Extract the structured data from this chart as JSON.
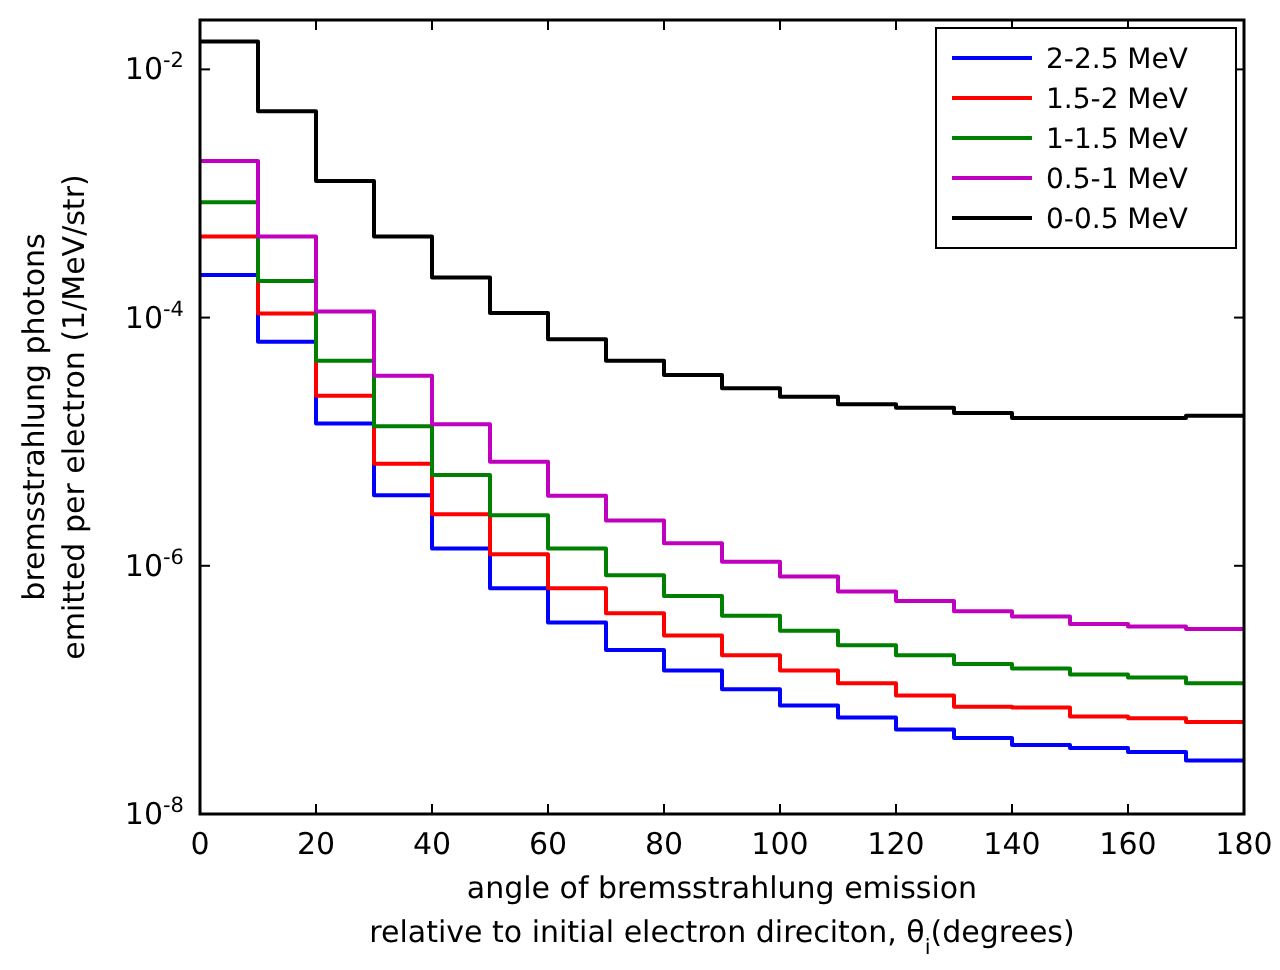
{
  "chart_data": {
    "type": "step",
    "xlabel": "angle of bremsstrahlung emission\nrelative to initial electron direciton, θ$_{i}$(degrees)",
    "ylabel": "bremsstrahlung photons\nemitted per electron (1/MeV/str)",
    "log": "y",
    "legend": "top right",
    "grid": false,
    "x": [
      0,
      10,
      20,
      30,
      40,
      50,
      60,
      70,
      80,
      90,
      100,
      110,
      120,
      130,
      140,
      150,
      160,
      170,
      180
    ],
    "xlim": [
      0,
      180
    ],
    "xticks": [
      0,
      20,
      40,
      60,
      80,
      100,
      120,
      140,
      160,
      180
    ],
    "ylim": [
      1e-08,
      0.025
    ],
    "yticks": [
      {
        "value": 1e-08,
        "label": "10$^{-8}$"
      },
      {
        "value": 1e-06,
        "label": "10$^{-6}$"
      },
      {
        "value": 0.0001,
        "label": "10$^{-4}$"
      },
      {
        "value": 0.01,
        "label": "10$^{-2}$"
      }
    ],
    "series": [
      {
        "name": "2-2.5 MeV",
        "color": "#0000ff",
        "values": [
          0.00022,
          6.4e-05,
          1.4e-05,
          3.7e-06,
          1.38e-06,
          6.6e-07,
          3.5e-07,
          2.1e-07,
          1.43e-07,
          1.01e-07,
          7.5e-08,
          6e-08,
          4.8e-08,
          4.1e-08,
          3.6e-08,
          3.4e-08,
          3.16e-08,
          2.7e-08,
          2.7e-08
        ]
      },
      {
        "name": "1.5-2 MeV",
        "color": "#ff0000",
        "values": [
          0.00045,
          0.000108,
          2.35e-05,
          6.65e-06,
          2.6e-06,
          1.24e-06,
          6.6e-07,
          4.15e-07,
          2.75e-07,
          1.9e-07,
          1.43e-07,
          1.13e-07,
          9e-08,
          7.3e-08,
          7.2e-08,
          6.1e-08,
          5.9e-08,
          5.5e-08,
          5.5e-08
        ]
      },
      {
        "name": "1-1.5 MeV",
        "color": "#008000",
        "values": [
          0.00085,
          0.000197,
          4.5e-05,
          1.33e-05,
          5.4e-06,
          2.56e-06,
          1.38e-06,
          8.4e-07,
          5.7e-07,
          3.95e-07,
          3e-07,
          2.29e-07,
          1.9e-07,
          1.62e-07,
          1.49e-07,
          1.33e-07,
          1.26e-07,
          1.13e-07,
          1.13e-07
        ]
      },
      {
        "name": "0.5-1 MeV",
        "color": "#bf00bf",
        "values": [
          0.00183,
          0.00045,
          0.000112,
          3.4e-05,
          1.38e-05,
          6.9e-06,
          3.67e-06,
          2.32e-06,
          1.52e-06,
          1.08e-06,
          8.2e-07,
          6.2e-07,
          5.2e-07,
          4.3e-07,
          3.9e-07,
          3.4e-07,
          3.24e-07,
          3.1e-07,
          3.1e-07
        ]
      },
      {
        "name": "0-0.5 MeV",
        "color": "#000000",
        "values": [
          0.0168,
          0.0046,
          0.00126,
          0.00045,
          0.00021,
          0.000109,
          6.7e-05,
          4.5e-05,
          3.45e-05,
          2.7e-05,
          2.3e-05,
          2e-05,
          1.88e-05,
          1.7e-05,
          1.55e-05,
          1.55e-05,
          1.55e-05,
          1.62e-05,
          1.62e-05
        ]
      }
    ]
  }
}
